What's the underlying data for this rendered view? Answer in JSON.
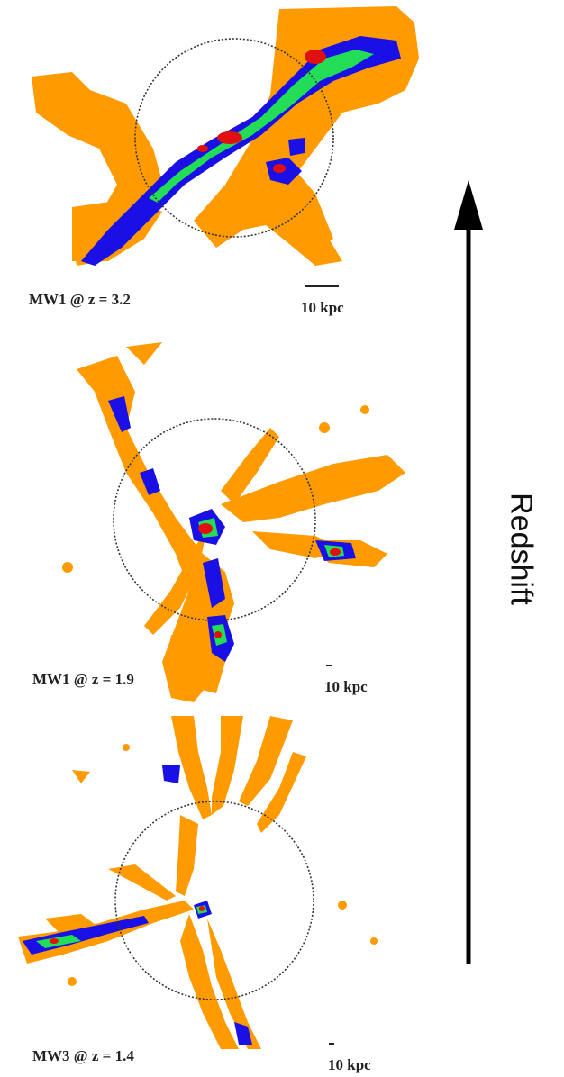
{
  "panels": [
    {
      "label": "MW1 @ z = 3.2",
      "scale_label": "10 kpc"
    },
    {
      "label": "MW1 @ z = 1.9",
      "scale_label": "10 kpc"
    },
    {
      "label": "MW3 @ z = 1.4",
      "scale_label": "10 kpc"
    }
  ],
  "axis": {
    "label": "Redshift"
  },
  "colors": {
    "orange": "#ff9a00",
    "blue": "#1a10e6",
    "green": "#22dd55",
    "red": "#e01010",
    "circle": "#333333"
  }
}
